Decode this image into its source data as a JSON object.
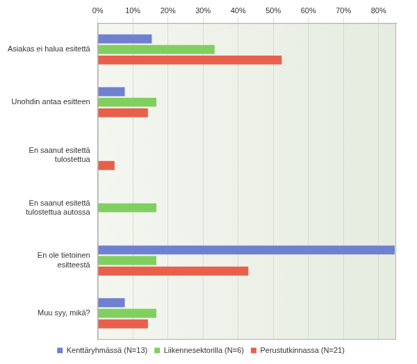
{
  "chart_data": {
    "type": "bar",
    "orientation": "horizontal",
    "categories": [
      "Asiakas ei halua esitettä",
      "Unohdin antaa esitteen",
      "En saanut esitettä tulostettua",
      "En saanut esitettä tulostettua autossa",
      "En ole tietoinen esitteestä",
      "Muu syy, mikä?"
    ],
    "series": [
      {
        "name": "Kenttäryhmässä (N=13)",
        "color": "#7080d0",
        "values": [
          15.4,
          7.7,
          0,
          0,
          84.6,
          7.7
        ]
      },
      {
        "name": "Liikennesektorilla (N=6)",
        "color": "#80d060",
        "values": [
          33.3,
          16.7,
          0,
          16.7,
          16.7,
          16.7
        ]
      },
      {
        "name": "Perustutkinnassa (N=21)",
        "color": "#e8604c",
        "values": [
          52.4,
          14.3,
          4.8,
          0,
          42.9,
          14.3
        ]
      }
    ],
    "xlim": [
      0,
      85
    ],
    "xticks": [
      {
        "value": 0,
        "label": "0%"
      },
      {
        "value": 10,
        "label": "10%"
      },
      {
        "value": 20,
        "label": "20%"
      },
      {
        "value": 30,
        "label": "30%"
      },
      {
        "value": 40,
        "label": "40%"
      },
      {
        "value": 50,
        "label": "50%"
      },
      {
        "value": 60,
        "label": "60%"
      },
      {
        "value": 70,
        "label": "70%"
      },
      {
        "value": 80,
        "label": "80%"
      }
    ],
    "grid": true,
    "legend": "bottom"
  }
}
